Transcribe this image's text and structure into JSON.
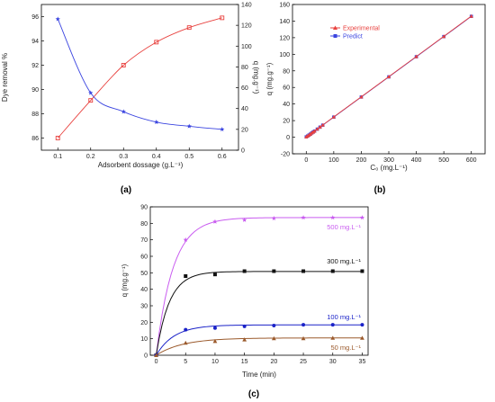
{
  "chart_data": [
    {
      "panel_label": "(a)",
      "type": "line",
      "xlabel": "Adsorbent dossage (g.L⁻¹)",
      "ylabel_left": "Dye removal %",
      "ylabel_right": "q (mg.g⁻¹)",
      "xlim": [
        0.05,
        0.65
      ],
      "ylim_left": [
        85,
        97
      ],
      "ylim_right": [
        0,
        140
      ],
      "x_ticks": [
        "0.1",
        "0.2",
        "0.3",
        "0.4",
        "0.5",
        "0.6"
      ],
      "y_left_ticks": [
        "86",
        "88",
        "90",
        "92",
        "94",
        "96"
      ],
      "y_right_ticks": [
        "0",
        "20",
        "40",
        "60",
        "80",
        "100",
        "120",
        "140"
      ],
      "series": [
        {
          "axis": "left",
          "color": "#e8413e",
          "marker": "square",
          "x": [
            0.1,
            0.2,
            0.3,
            0.4,
            0.5,
            0.6
          ],
          "y": [
            86.0,
            89.1,
            92.0,
            93.9,
            95.1,
            95.9
          ]
        },
        {
          "axis": "right",
          "color": "#3b45e0",
          "marker": "star",
          "x": [
            0.1,
            0.2,
            0.3,
            0.4,
            0.5,
            0.6
          ],
          "y": [
            126,
            55,
            37,
            27,
            23,
            20
          ]
        }
      ]
    },
    {
      "panel_label": "(b)",
      "type": "line",
      "xlabel": "C₀ (mg.L⁻¹)",
      "ylabel": "q (mg.g⁻¹)",
      "xlim": [
        -50,
        650
      ],
      "ylim": [
        -20,
        160
      ],
      "x_ticks": [
        "0",
        "100",
        "200",
        "300",
        "400",
        "500",
        "600"
      ],
      "y_ticks": [
        "-20",
        "0",
        "20",
        "40",
        "60",
        "80",
        "100",
        "120",
        "140",
        "160"
      ],
      "legend_position": "top-left",
      "series": [
        {
          "name": "Experimental",
          "color": "#e8413e",
          "marker": "triangle",
          "x": [
            0,
            5,
            10,
            15,
            20,
            25,
            30,
            40,
            50,
            60,
            100,
            200,
            300,
            400,
            500,
            600
          ],
          "y": [
            0.5,
            1.5,
            2.8,
            3.8,
            5.2,
            6.3,
            7.5,
            9.9,
            12.3,
            14.7,
            24.5,
            48.7,
            73.0,
            97.3,
            121.6,
            146.0
          ]
        },
        {
          "name": "Predict",
          "color": "#3b45e0",
          "marker": "square",
          "x": [
            0,
            5,
            10,
            15,
            20,
            25,
            30,
            40,
            50,
            60,
            100,
            200,
            300,
            400,
            500,
            600
          ],
          "y": [
            0.4,
            1.4,
            2.6,
            3.7,
            5.0,
            6.1,
            7.3,
            9.7,
            12.1,
            14.5,
            24.2,
            48.4,
            72.7,
            97.0,
            121.3,
            145.7
          ]
        }
      ]
    },
    {
      "panel_label": "(c)",
      "type": "line",
      "xlabel": "Time (min)",
      "ylabel": "q (mg.g⁻¹)",
      "xlim": [
        -1,
        36
      ],
      "ylim": [
        0,
        90
      ],
      "x_ticks": [
        "0",
        "5",
        "10",
        "15",
        "20",
        "25",
        "30",
        "35"
      ],
      "y_ticks": [
        "0",
        "10",
        "20",
        "30",
        "40",
        "50",
        "60",
        "70",
        "80",
        "90"
      ],
      "series": [
        {
          "name": "500 mg.L⁻¹",
          "color": "#c95cf0",
          "marker": "star",
          "x": [
            0,
            5,
            10,
            15,
            20,
            25,
            30,
            35
          ],
          "y": [
            0,
            70,
            81,
            82,
            83,
            83.5,
            83.5,
            83.5
          ],
          "fit_qe": 83.5,
          "fit_k": 0.35
        },
        {
          "name": "300 mg.L⁻¹",
          "color": "#111111",
          "marker": "square",
          "x": [
            0,
            5,
            10,
            15,
            20,
            25,
            30,
            35
          ],
          "y": [
            0,
            48,
            49,
            51,
            51,
            51,
            51,
            51
          ],
          "fit_qe": 50.8,
          "fit_k": 0.45
        },
        {
          "name": "100 mg.L⁻¹",
          "color": "#1a22c8",
          "marker": "circle",
          "x": [
            0,
            5,
            10,
            15,
            20,
            25,
            30,
            35
          ],
          "y": [
            0,
            15.5,
            16.5,
            17.5,
            18,
            18.5,
            18.5,
            18.5
          ],
          "fit_qe": 18.4,
          "fit_k": 0.33
        },
        {
          "name": "50 mg.L⁻¹",
          "color": "#9b5a2c",
          "marker": "triangle",
          "x": [
            0,
            5,
            10,
            15,
            20,
            25,
            30,
            35
          ],
          "y": [
            0,
            7.5,
            8.5,
            9.5,
            10.2,
            10.2,
            10.5,
            10.5
          ],
          "fit_qe": 10.5,
          "fit_k": 0.22
        }
      ]
    }
  ]
}
